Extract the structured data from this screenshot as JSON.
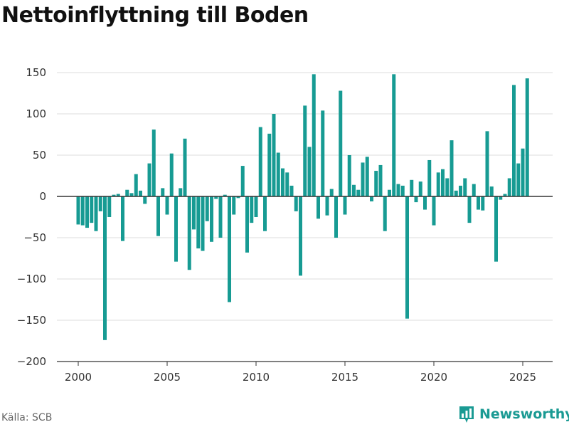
{
  "title": "Nettoinflyttning till Boden",
  "source": "Källa: SCB",
  "brand": "Newsworthy",
  "colors": {
    "bar": "#179b93",
    "grid": "#dddddd",
    "zero": "#333333",
    "brand": "#1a9a93"
  },
  "chart_data": {
    "type": "bar",
    "title": "Nettoinflyttning till Boden",
    "xlabel": "",
    "ylabel": "",
    "grid": true,
    "ylim": [
      -200,
      160
    ],
    "yticks": [
      150,
      100,
      50,
      0,
      -50,
      -100,
      -150,
      -200
    ],
    "ytick_labels": [
      "150",
      "100",
      "50",
      "0",
      "−50",
      "−100",
      "−150",
      "−200"
    ],
    "xlim": [
      1999.625,
      2026.75
    ],
    "xticks": [
      2000,
      2005,
      2010,
      2015,
      2020,
      2025
    ],
    "xtick_labels": [
      "2000",
      "2005",
      "2010",
      "2015",
      "2020",
      "2025"
    ],
    "period": "quarterly",
    "start": "2000 Q1",
    "values": [
      -34,
      -35,
      -38,
      -32,
      -42,
      -18,
      -174,
      -25,
      2,
      3,
      -54,
      8,
      4,
      27,
      7,
      -9,
      40,
      81,
      -48,
      10,
      -22,
      52,
      -79,
      10,
      70,
      -89,
      -40,
      -63,
      -66,
      -30,
      -55,
      -3,
      -50,
      2,
      -128,
      -22,
      -2,
      37,
      -68,
      -32,
      -25,
      84,
      -42,
      76,
      100,
      53,
      34,
      29,
      13,
      -18,
      -96,
      110,
      60,
      148,
      -27,
      104,
      -23,
      9,
      -50,
      128,
      -22,
      50,
      14,
      8,
      41,
      48,
      -6,
      31,
      38,
      -42,
      8,
      148,
      15,
      13,
      -148,
      20,
      -7,
      18,
      -16,
      44,
      -35,
      29,
      33,
      22,
      68,
      7,
      13,
      22,
      -32,
      15,
      -16,
      -17,
      79,
      12,
      -79,
      -4,
      3,
      22,
      135,
      40,
      58,
      143
    ]
  }
}
